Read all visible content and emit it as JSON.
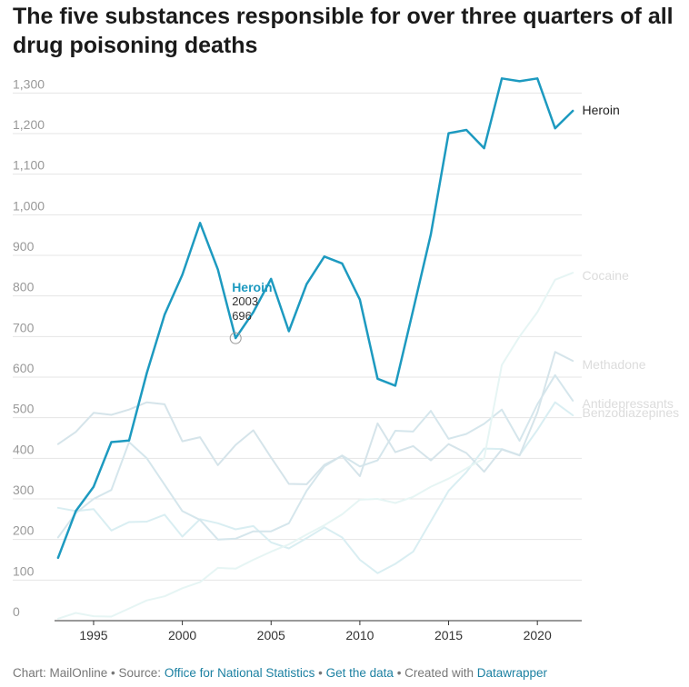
{
  "title": "The five substances responsible for over three quarters of all drug poisoning deaths",
  "footer": {
    "chart_by": "Chart: MailOnline",
    "sep1": " • ",
    "source_prefix": "Source: ",
    "source_link": "Office for National Statistics",
    "sep2": " • ",
    "data_link": "Get the data",
    "sep3": " • ",
    "created_prefix": "Created with ",
    "created_link": "Datawrapper"
  },
  "chart_data": {
    "type": "line",
    "title": "The five substances responsible for over three quarters of all drug poisoning deaths",
    "xlabel": "",
    "ylabel": "",
    "x": [
      1993,
      1994,
      1995,
      1996,
      1997,
      1998,
      1999,
      2000,
      2001,
      2002,
      2003,
      2004,
      2005,
      2006,
      2007,
      2008,
      2009,
      2010,
      2011,
      2012,
      2013,
      2014,
      2015,
      2016,
      2017,
      2018,
      2019,
      2020,
      2021,
      2022
    ],
    "xlim": [
      1992.8,
      2022.5
    ],
    "ylim": [
      0,
      1350
    ],
    "yticks": [
      0,
      100,
      200,
      300,
      400,
      500,
      600,
      700,
      800,
      900,
      1000,
      1100,
      1200,
      1300
    ],
    "ytick_labels": [
      "0",
      "100",
      "200",
      "300",
      "400",
      "500",
      "600",
      "700",
      "800",
      "900",
      "1,000",
      "1,100",
      "1,200",
      "1,300"
    ],
    "xticks": [
      1995,
      2000,
      2005,
      2010,
      2015,
      2020
    ],
    "xtick_labels": [
      "1995",
      "2000",
      "2005",
      "2010",
      "2015",
      "2020"
    ],
    "grid": true,
    "series": [
      {
        "name": "Benzodiazepines",
        "color": "#d9eef2",
        "highlight": false,
        "values": [
          278,
          270,
          275,
          222,
          243,
          244,
          261,
          207,
          250,
          240,
          225,
          233,
          193,
          178,
          203,
          230,
          205,
          150,
          117,
          140,
          170,
          245,
          320,
          366,
          424,
          423,
          408,
          470,
          538,
          506
        ]
      },
      {
        "name": "Antidepressants",
        "color": "#d5e6ec",
        "highlight": false,
        "values": [
          205,
          265,
          300,
          322,
          440,
          400,
          335,
          270,
          248,
          200,
          202,
          220,
          220,
          240,
          320,
          380,
          407,
          380,
          395,
          468,
          466,
          517,
          448,
          460,
          485,
          520,
          443,
          533,
          605,
          542
        ]
      },
      {
        "name": "Methadone",
        "color": "#d5e4ea",
        "highlight": false,
        "values": [
          435,
          465,
          512,
          507,
          520,
          538,
          533,
          442,
          452,
          383,
          433,
          469,
          402,
          337,
          336,
          384,
          406,
          356,
          486,
          415,
          430,
          395,
          435,
          413,
          367,
          422,
          407,
          513,
          662,
          640
        ]
      },
      {
        "name": "Cocaine",
        "color": "#e6f5f4",
        "highlight": false,
        "values": [
          5,
          19,
          11,
          10,
          30,
          50,
          60,
          80,
          95,
          130,
          128,
          150,
          170,
          188,
          212,
          235,
          262,
          298,
          300,
          290,
          305,
          330,
          350,
          375,
          400,
          630,
          700,
          760,
          840,
          857
        ]
      },
      {
        "name": "Heroin",
        "color": "#1d9ac0",
        "highlight": true,
        "values": [
          155,
          270,
          330,
          440,
          444,
          610,
          754,
          852,
          980,
          865,
          696,
          760,
          842,
          713,
          829,
          897,
          880,
          791,
          596,
          579,
          765,
          952,
          1201,
          1209,
          1164,
          1336,
          1329,
          1336,
          1213,
          1256
        ]
      }
    ],
    "tooltip": {
      "series": "Heroin",
      "year_label": "2003",
      "value_label": "696"
    }
  }
}
